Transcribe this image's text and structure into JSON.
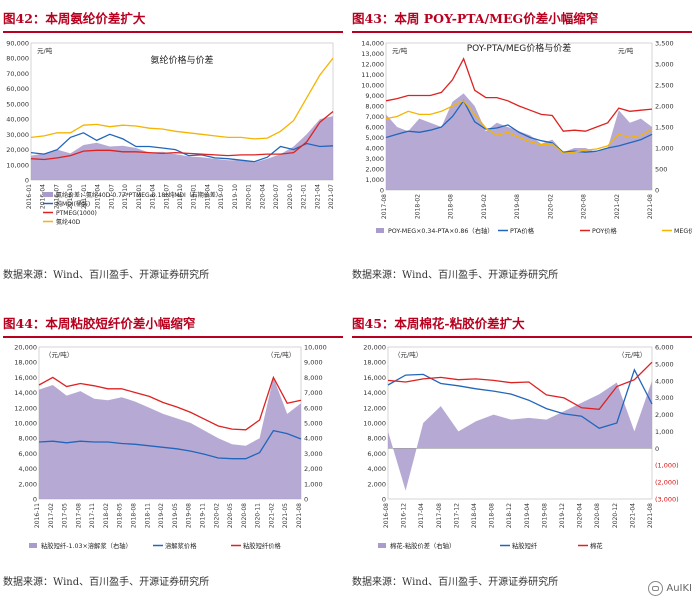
{
  "panels": [
    {
      "title": "图42：本周氨纶价差扩大",
      "source": "数据来源：Wind、百川盈手、开源证券研究所"
    },
    {
      "title": "图43：本周 POY-PTA/MEG价差小幅缩窄",
      "source": "数据来源：Wind、百川盈手、开源证券研究所"
    },
    {
      "title": "图44：本周粘胶短纤价差小幅缩窄",
      "source": "数据来源：Wind、百川盈手、开源证券研究所"
    },
    {
      "title": "图45：本周棉花-粘胶价差扩大",
      "source": "数据来源：Wind、百川盈手、开源证券研究所"
    }
  ],
  "watermark": "AuIKI",
  "chart_data": [
    {
      "type": "area",
      "title": "氨纶价格与价差",
      "unit_left": "元/吨",
      "ylim": [
        0,
        90000
      ],
      "yticks": [
        "0",
        "10,000",
        "20,000",
        "30,000",
        "40,000",
        "50,000",
        "60,000",
        "70,000",
        "80,000",
        "90,000"
      ],
      "xticks": [
        "2016-01",
        "2016-04",
        "2016-07",
        "2016-10",
        "2017-01",
        "2017-04",
        "2017-07",
        "2017-10",
        "2018-01",
        "2018-04",
        "2018-07",
        "2018-10",
        "2019-01",
        "2019-04",
        "2019-07",
        "2019-10",
        "2020-01",
        "2020-04",
        "2020-07",
        "2020-10",
        "2021-01",
        "2021-04",
        "2021-07"
      ],
      "x": [
        0,
        3,
        6,
        9,
        12,
        15,
        18,
        21,
        24,
        27,
        30,
        33,
        36,
        39,
        42,
        45,
        48,
        51,
        54,
        57,
        60,
        63,
        66,
        69
      ],
      "series": [
        {
          "name": "氨纶价差：氨纶40D-0.77*PTMEG-0.18*纯MDI（右期价差）",
          "kind": "area",
          "color": "#a99bcc",
          "values": [
            16000,
            17500,
            20000,
            17500,
            23000,
            24500,
            22000,
            22500,
            21000,
            18000,
            18500,
            17000,
            15500,
            15000,
            14000,
            13000,
            13000,
            11500,
            14000,
            17000,
            22000,
            30000,
            40000,
            42000
          ]
        },
        {
          "name": "纯MDI(桶装)",
          "kind": "line",
          "color": "#2266bb",
          "values": [
            18000,
            17000,
            20000,
            28000,
            31000,
            26000,
            30000,
            27000,
            22000,
            22000,
            21000,
            20000,
            16000,
            16500,
            14500,
            14000,
            13000,
            12000,
            15000,
            22000,
            20000,
            24000,
            22000,
            22500
          ]
        },
        {
          "name": "PTMEG(1000)",
          "kind": "line",
          "color": "#dd2222",
          "values": [
            14000,
            13500,
            14500,
            16000,
            19000,
            19500,
            19500,
            18500,
            18500,
            18000,
            17500,
            18000,
            17500,
            17000,
            16500,
            16000,
            16500,
            16500,
            17000,
            17000,
            18000,
            25000,
            38000,
            45000
          ]
        },
        {
          "name": "氨纶40D",
          "kind": "line",
          "color": "#f5b400",
          "values": [
            28000,
            29000,
            31000,
            31000,
            36000,
            36500,
            35000,
            36000,
            35500,
            34000,
            33500,
            32000,
            31000,
            30000,
            29000,
            28000,
            28000,
            27000,
            27500,
            32000,
            39000,
            54000,
            69000,
            80000
          ]
        }
      ]
    },
    {
      "type": "area",
      "title": "POY-PTA/MEG价格与价差",
      "unit_left": "元/吨",
      "unit_right": "元/吨",
      "ylim_left": [
        0,
        14000
      ],
      "ylim_right": [
        0,
        3500
      ],
      "yticks_left": [
        "0",
        "1,000",
        "2,000",
        "3,000",
        "4,000",
        "5,000",
        "6,000",
        "7,000",
        "8,000",
        "9,000",
        "10,000",
        "11,000",
        "12,000",
        "13,000",
        "14,000"
      ],
      "yticks_right": [
        "0",
        "500",
        "1,000",
        "1,500",
        "2,000",
        "2,500",
        "3,000",
        "3,500"
      ],
      "xticks": [
        "2017-08",
        "2018-02",
        "2018-08",
        "2019-02",
        "2019-08",
        "2020-02",
        "2020-08",
        "2021-02",
        "2021-08"
      ],
      "x": [
        0,
        2,
        4,
        6,
        8,
        10,
        12,
        14,
        16,
        18,
        20,
        22,
        24,
        26,
        28,
        30,
        32,
        34,
        36,
        38,
        40,
        42,
        44,
        46,
        48
      ],
      "series": [
        {
          "name": "POY-MEG×0.34-PTA×0.86（右轴）",
          "kind": "area",
          "axis": "right",
          "color": "#a99bcc",
          "values": [
            1800,
            1500,
            1400,
            1700,
            1600,
            1500,
            2100,
            2300,
            2000,
            1400,
            1600,
            1500,
            1400,
            1300,
            1100,
            1200,
            900,
            1000,
            1000,
            900,
            1000,
            1900,
            1600,
            1700,
            1500
          ]
        },
        {
          "name": "PTA价格",
          "kind": "line",
          "axis": "left",
          "color": "#2266bb",
          "values": [
            5000,
            5300,
            5600,
            5500,
            5700,
            6000,
            7000,
            8500,
            6500,
            5800,
            5900,
            6200,
            5500,
            5000,
            4700,
            4500,
            3600,
            3700,
            3600,
            3700,
            4000,
            4200,
            4500,
            4800,
            5300
          ]
        },
        {
          "name": "POY价格",
          "kind": "line",
          "axis": "left",
          "color": "#dd2222",
          "values": [
            8500,
            8700,
            9000,
            9000,
            9000,
            9300,
            10500,
            12500,
            9500,
            8800,
            8800,
            8500,
            8000,
            7600,
            7200,
            7100,
            5600,
            5700,
            5600,
            6000,
            6400,
            7800,
            7500,
            7600,
            7700
          ]
        },
        {
          "name": "MEG价格",
          "kind": "line",
          "axis": "left",
          "color": "#f5b400",
          "values": [
            6800,
            7000,
            7500,
            7200,
            7200,
            7500,
            8000,
            8500,
            7200,
            5900,
            5200,
            5500,
            5000,
            4600,
            4300,
            4400,
            3500,
            3600,
            3800,
            3900,
            4200,
            5300,
            5000,
            5200,
            5800
          ]
        }
      ]
    },
    {
      "type": "area",
      "title": "",
      "unit_left": "（元/吨）",
      "unit_right": "（元/吨）",
      "ylim_left": [
        0,
        20000
      ],
      "ylim_right": [
        0,
        10000
      ],
      "yticks_left": [
        "0",
        "2,000",
        "4,000",
        "6,000",
        "8,000",
        "10,000",
        "12,000",
        "14,000",
        "16,000",
        "18,000",
        "20,000"
      ],
      "yticks_right": [
        "0",
        "1,000",
        "2,000",
        "3,000",
        "4,000",
        "5,000",
        "6,000",
        "7,000",
        "8,000",
        "9,000",
        "10,000"
      ],
      "xticks": [
        "2016-11",
        "2017-02",
        "2017-05",
        "2017-08",
        "2017-11",
        "2018-02",
        "2018-05",
        "2018-08",
        "2018-11",
        "2019-02",
        "2019-05",
        "2019-08",
        "2019-11",
        "2020-02",
        "2020-05",
        "2020-08",
        "2020-11",
        "2021-02",
        "2021-05",
        "2021-08"
      ],
      "x": [
        0,
        3,
        6,
        9,
        12,
        15,
        18,
        21,
        24,
        27,
        30,
        33,
        36,
        39,
        42,
        45,
        48,
        51,
        54,
        57
      ],
      "series": [
        {
          "name": "粘胶短纤-1.03×溶解浆（右轴）",
          "kind": "area",
          "axis": "right",
          "color": "#a99bcc",
          "values": [
            7200,
            7500,
            6800,
            7100,
            6600,
            6500,
            6700,
            6400,
            6000,
            5600,
            5300,
            5000,
            4500,
            4000,
            3600,
            3500,
            4000,
            8000,
            5600,
            6300
          ]
        },
        {
          "name": "溶解浆价格",
          "kind": "line",
          "axis": "left",
          "color": "#2266bb",
          "values": [
            7500,
            7600,
            7400,
            7600,
            7500,
            7500,
            7300,
            7200,
            7000,
            6800,
            6600,
            6300,
            5900,
            5400,
            5300,
            5300,
            6100,
            9000,
            8600,
            7900
          ]
        },
        {
          "name": "粘胶短纤价格",
          "kind": "line",
          "axis": "left",
          "color": "#dd2222",
          "values": [
            15000,
            16000,
            14800,
            15200,
            14900,
            14500,
            14500,
            14000,
            13500,
            12700,
            12100,
            11400,
            10500,
            9600,
            9200,
            9100,
            10400,
            16000,
            12600,
            13000
          ]
        }
      ]
    },
    {
      "type": "area",
      "title": "",
      "unit_left": "（元/吨）",
      "unit_right": "（元/吨）",
      "ylim_left": [
        0,
        20000
      ],
      "ylim_right": [
        -3000,
        6000
      ],
      "yticks_left": [
        "0",
        "2,000",
        "4,000",
        "6,000",
        "8,000",
        "10,000",
        "12,000",
        "14,000",
        "16,000",
        "18,000",
        "20,000"
      ],
      "yticks_right": [
        "(3,000)",
        "(2,000)",
        "(1,000)",
        "0",
        "1,000",
        "2,000",
        "3,000",
        "4,000",
        "5,000",
        "6,000"
      ],
      "xticks": [
        "2016-08",
        "2016-12",
        "2017-04",
        "2017-08",
        "2017-12",
        "2018-04",
        "2018-08",
        "2018-12",
        "2019-04",
        "2019-08",
        "2019-12",
        "2020-04",
        "2020-08",
        "2020-12",
        "2021-04",
        "2021-08"
      ],
      "x": [
        0,
        4,
        8,
        12,
        16,
        20,
        24,
        28,
        32,
        36,
        40,
        44,
        48,
        52,
        56,
        60
      ],
      "series": [
        {
          "name": "棉花-粘胶价差（右轴）",
          "kind": "area",
          "axis": "right",
          "color": "#a99bcc",
          "values": [
            1000,
            -2500,
            1500,
            2500,
            1000,
            1600,
            2000,
            1700,
            1800,
            1700,
            2200,
            2700,
            3200,
            3900,
            1000,
            4000
          ]
        },
        {
          "name": "粘胶短纤",
          "kind": "line",
          "axis": "left",
          "color": "#2266bb",
          "values": [
            15000,
            16300,
            16400,
            15200,
            14900,
            14500,
            14200,
            13800,
            13000,
            11900,
            11200,
            10900,
            9300,
            10000,
            17000,
            12500
          ]
        },
        {
          "name": "棉花",
          "kind": "line",
          "axis": "left",
          "color": "#dd2222",
          "values": [
            15600,
            15400,
            15800,
            16000,
            15700,
            15800,
            15600,
            15300,
            15400,
            13700,
            13300,
            12000,
            11800,
            14800,
            15700,
            18000
          ]
        }
      ]
    }
  ]
}
